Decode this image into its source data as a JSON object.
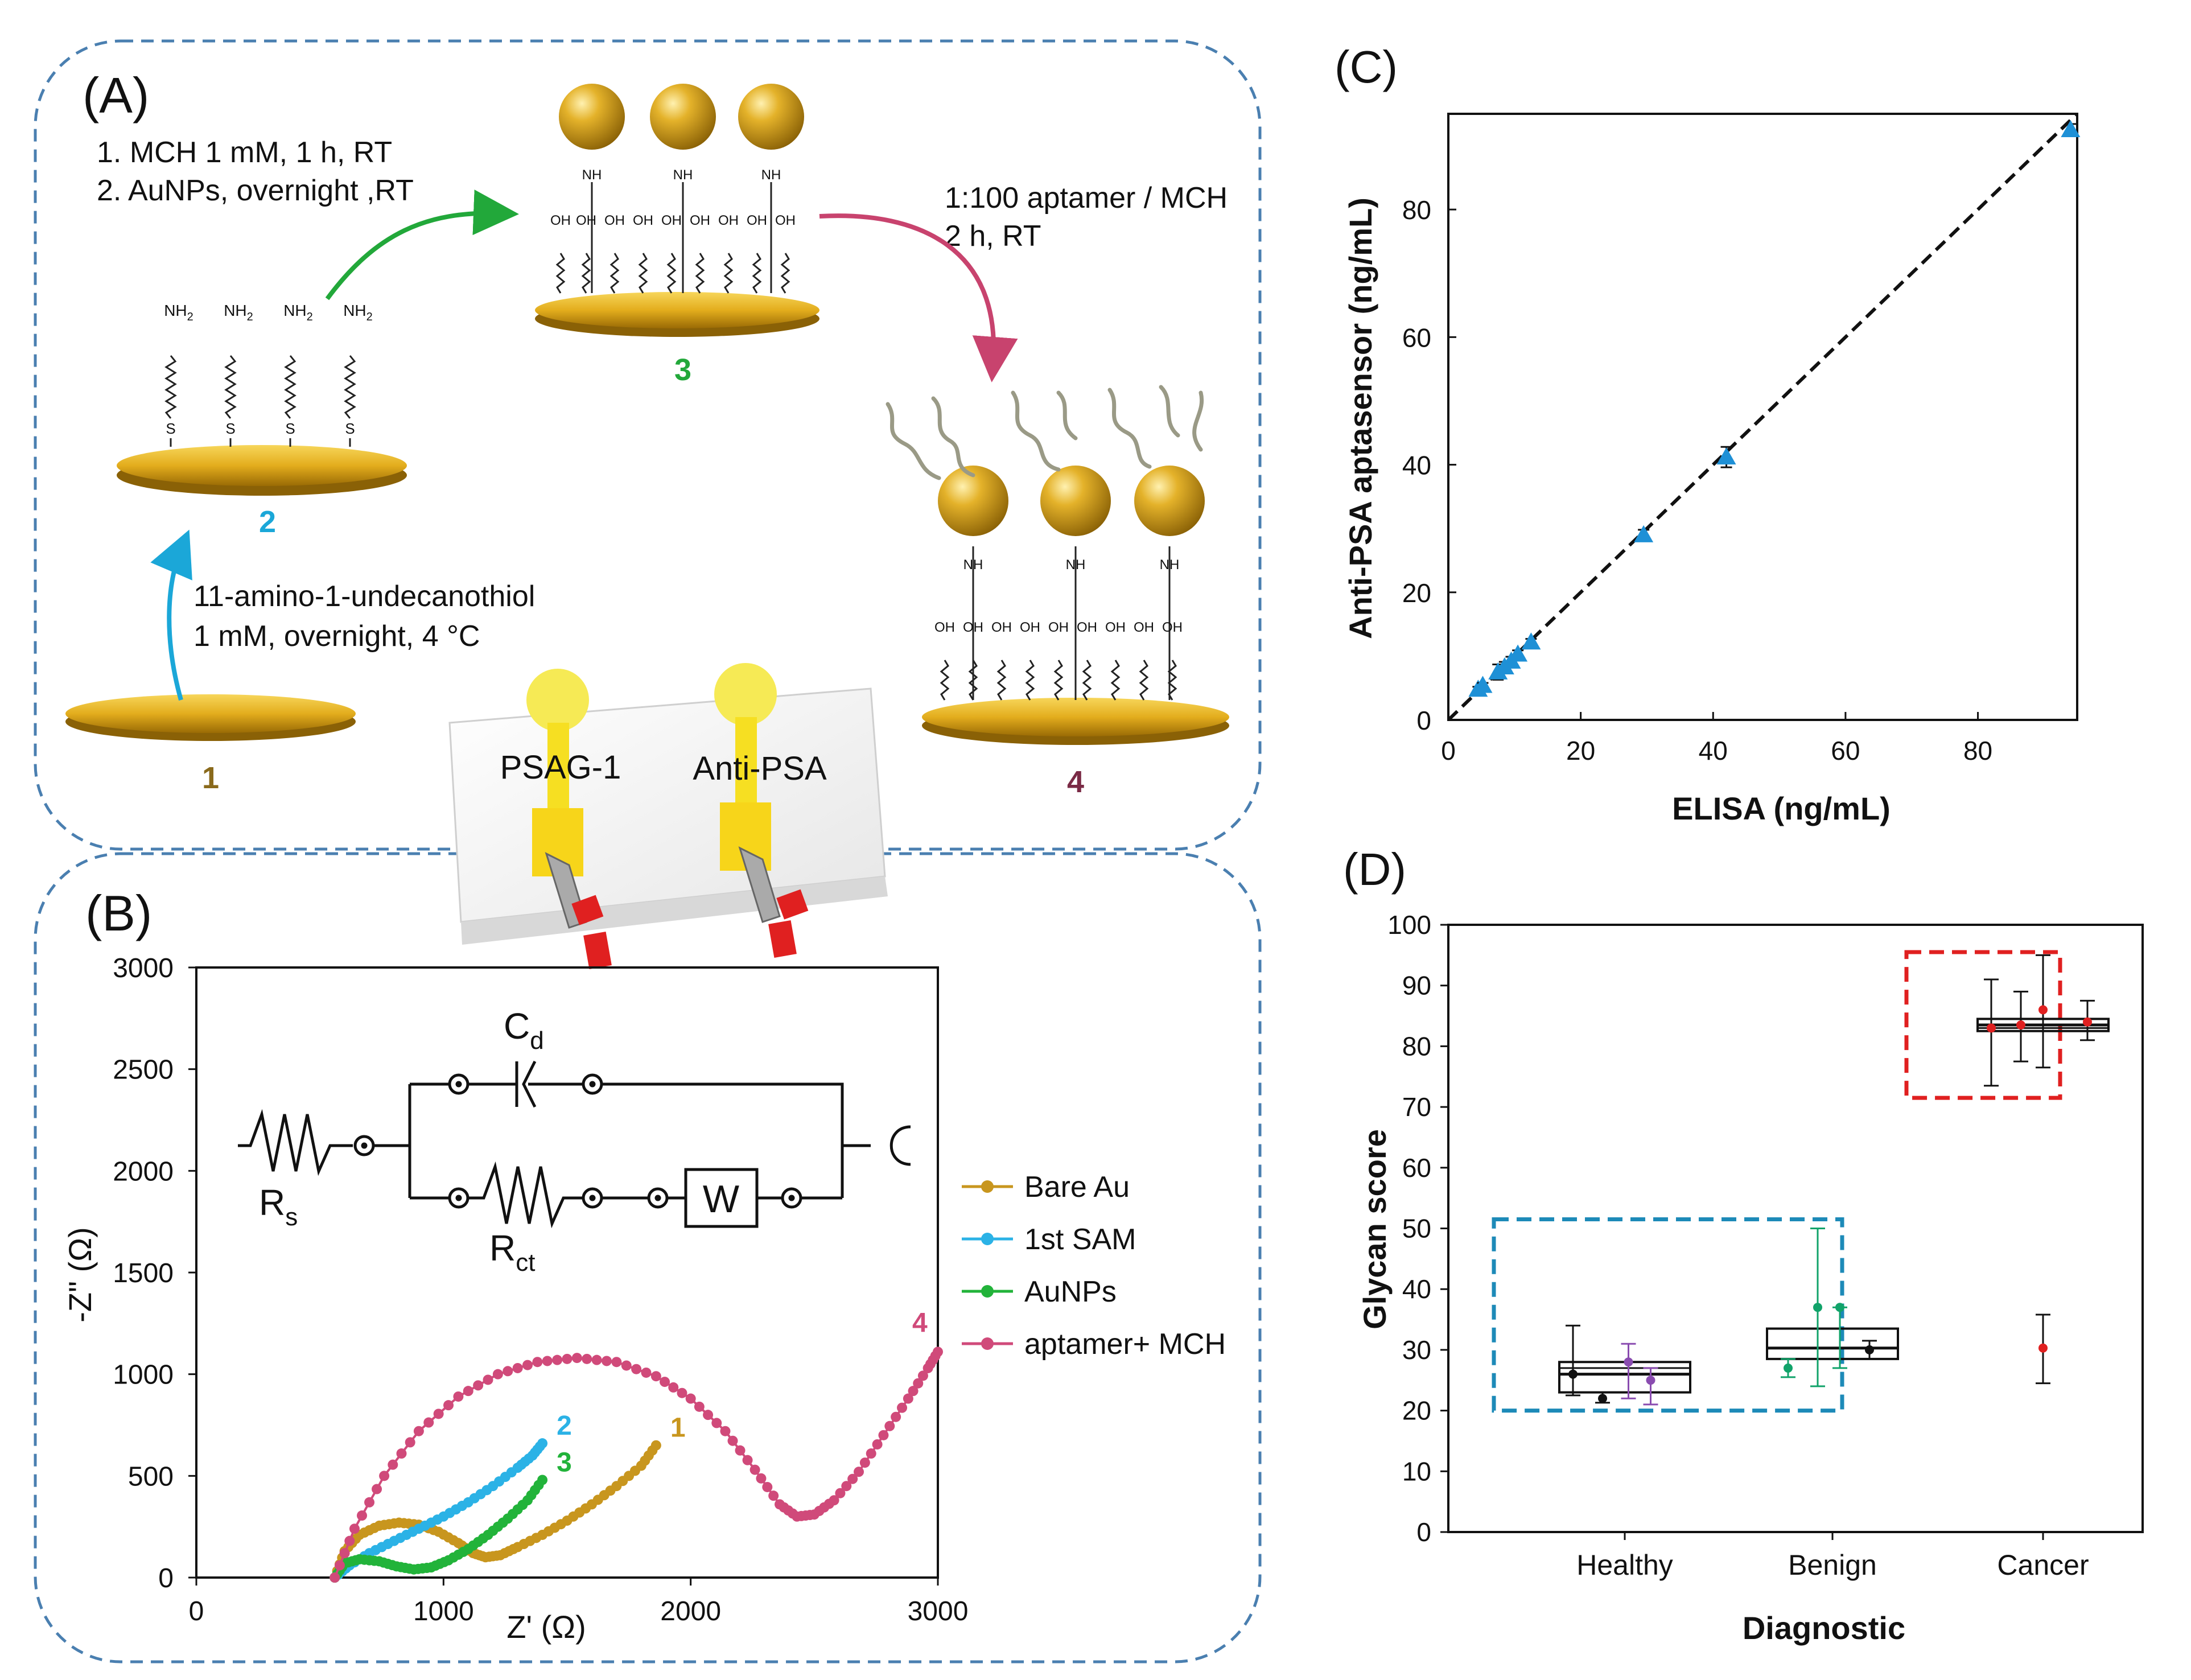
{
  "panel_a": {
    "label": "(A)",
    "step1_line1": "1. MCH 1 mM, 1 h, RT",
    "step1_line2": "2. AuNPs, overnight ,RT",
    "step2_line1": "1:100 aptamer / MCH",
    "step2_line2": "2 h, RT",
    "step0_line1": "11-amino-1-undecanothiol",
    "step0_line2": "1 mM, overnight, 4 °C",
    "num1": "1",
    "num2": "2",
    "num3": "3",
    "num4": "4",
    "nh2": "NH",
    "nh2_sub": "2",
    "nh": "NH",
    "oh": "OH",
    "s": "S",
    "chip_label1": "PSAG-1",
    "chip_label2": "Anti-PSA",
    "colors": {
      "gold": "#d9a21b",
      "arrow_green": "#22a83a",
      "arrow_pink": "#c8436e",
      "arrow_blue": "#1ba7d8",
      "num_brown": "#8a6a1c",
      "num_blue": "#1ba7d8",
      "num_green": "#22a83a",
      "num_maroon": "#7a2a45",
      "frame": "#4a7fb0"
    }
  },
  "panel_b": {
    "label": "(B)",
    "circuit": {
      "cd": "C",
      "cd_sub": "d",
      "rs": "R",
      "rs_sub": "s",
      "rct": "R",
      "rct_sub": "ct",
      "w": "W"
    },
    "xlabel": "Z' (Ω)",
    "ylabel": "-Z\" (Ω)",
    "curve_labels": [
      "1",
      "2",
      "3",
      "4"
    ]
  },
  "panel_c": {
    "label": "(C)"
  },
  "panel_d": {
    "label": "(D)"
  },
  "chart_data": [
    {
      "id": "B",
      "type": "line",
      "title": "",
      "xlabel": "Z' (Ω)",
      "ylabel": "-Z\" (Ω)",
      "xlim": [
        0,
        3000
      ],
      "ylim": [
        0,
        3000
      ],
      "xticks": [
        "0",
        "1000",
        "2000",
        "3000"
      ],
      "yticks": [
        "0",
        "500",
        "1000",
        "1500",
        "2000",
        "2500",
        "3000"
      ],
      "legend": "right",
      "series": [
        {
          "name": "Bare Au",
          "color": "#c8961e",
          "points": [
            [
              560,
              0
            ],
            [
              600,
              130
            ],
            [
              660,
              210
            ],
            [
              740,
              255
            ],
            [
              820,
              270
            ],
            [
              900,
              260
            ],
            [
              980,
              225
            ],
            [
              1060,
              170
            ],
            [
              1120,
              120
            ],
            [
              1170,
              100
            ],
            [
              1230,
              110
            ],
            [
              1300,
              150
            ],
            [
              1400,
              210
            ],
            [
              1500,
              280
            ],
            [
              1600,
              360
            ],
            [
              1700,
              450
            ],
            [
              1800,
              550
            ],
            [
              1860,
              650
            ]
          ]
        },
        {
          "name": "1st  SAM",
          "color": "#2bb2e6",
          "points": [
            [
              560,
              0
            ],
            [
              620,
              60
            ],
            [
              700,
              120
            ],
            [
              800,
              180
            ],
            [
              900,
              240
            ],
            [
              1000,
              300
            ],
            [
              1100,
              370
            ],
            [
              1200,
              450
            ],
            [
              1300,
              540
            ],
            [
              1360,
              600
            ],
            [
              1400,
              660
            ]
          ]
        },
        {
          "name": "AuNPs",
          "color": "#22b33a",
          "points": [
            [
              560,
              0
            ],
            [
              600,
              70
            ],
            [
              660,
              90
            ],
            [
              740,
              80
            ],
            [
              810,
              55
            ],
            [
              880,
              40
            ],
            [
              950,
              50
            ],
            [
              1020,
              85
            ],
            [
              1100,
              140
            ],
            [
              1180,
              210
            ],
            [
              1260,
              290
            ],
            [
              1340,
              380
            ],
            [
              1400,
              480
            ]
          ]
        },
        {
          "name": "aptamer+ MCH",
          "color": "#d04a7a",
          "points": [
            [
              560,
              0
            ],
            [
              640,
              240
            ],
            [
              760,
              500
            ],
            [
              900,
              720
            ],
            [
              1060,
              890
            ],
            [
              1220,
              1000
            ],
            [
              1380,
              1060
            ],
            [
              1540,
              1080
            ],
            [
              1700,
              1060
            ],
            [
              1860,
              990
            ],
            [
              2000,
              880
            ],
            [
              2140,
              720
            ],
            [
              2260,
              530
            ],
            [
              2360,
              360
            ],
            [
              2430,
              300
            ],
            [
              2500,
              310
            ],
            [
              2580,
              380
            ],
            [
              2680,
              520
            ],
            [
              2780,
              700
            ],
            [
              2880,
              880
            ],
            [
              2960,
              1030
            ],
            [
              3000,
              1110
            ]
          ]
        }
      ]
    },
    {
      "id": "C",
      "type": "scatter",
      "title": "",
      "xlabel": "ELISA (ng/mL)",
      "ylabel": "Anti-PSA aptasensor (ng/mL)",
      "xlim": [
        0,
        95
      ],
      "ylim": [
        0,
        95
      ],
      "xticks": [
        "0",
        "20",
        "40",
        "60",
        "80"
      ],
      "yticks": [
        "0",
        "20",
        "40",
        "60",
        "80"
      ],
      "grid": false,
      "points": [
        [
          4.5,
          4.8
        ],
        [
          5.2,
          5.4
        ],
        [
          7.5,
          7.5
        ],
        [
          8.5,
          8.3
        ],
        [
          9.5,
          9.2
        ],
        [
          10.5,
          10.3
        ],
        [
          12.5,
          12.2
        ],
        [
          29.5,
          29
        ],
        [
          42,
          41.2
        ],
        [
          94,
          92.5
        ]
      ],
      "errors": [
        0.4,
        0.4,
        1.2,
        0.8,
        0.7,
        0.6,
        0.5,
        0.8,
        1.6,
        0.9
      ],
      "fit": [
        [
          0,
          0
        ],
        [
          95,
          95
        ]
      ]
    },
    {
      "id": "D",
      "type": "box",
      "title": "",
      "xlabel": "Diagnostic",
      "ylabel": "Glycan score",
      "ylim": [
        0,
        100
      ],
      "yticks": [
        "0",
        "10",
        "20",
        "30",
        "40",
        "50",
        "60",
        "70",
        "80",
        "90",
        "100"
      ],
      "categories": [
        "Healthy",
        "Benign",
        "Cancer"
      ],
      "boxes": [
        {
          "category": "Healthy",
          "q1": 23,
          "median": 26,
          "q3": 28,
          "extra_line": 27
        },
        {
          "category": "Benign",
          "q1": 28.5,
          "median": 30.3,
          "q3": 33.5
        },
        {
          "category": "Cancer",
          "q1": 82.5,
          "median": 83.5,
          "q3": 84.5,
          "extra_line": 83
        }
      ],
      "error_points": [
        {
          "category": "Healthy",
          "offset": -0.7,
          "value": 26,
          "low": 22.5,
          "high": 34,
          "color": "#111111"
        },
        {
          "category": "Healthy",
          "offset": -0.3,
          "value": 22,
          "low": 21.3,
          "high": 23,
          "color": "#111111"
        },
        {
          "category": "Healthy",
          "offset": 0.05,
          "value": 28,
          "low": 22,
          "high": 31,
          "color": "#8a4cb0"
        },
        {
          "category": "Healthy",
          "offset": 0.35,
          "value": 25,
          "low": 21,
          "high": 27,
          "color": "#8a4cb0"
        },
        {
          "category": "Benign",
          "offset": -0.6,
          "value": 27,
          "low": 25.5,
          "high": 28.5,
          "color": "#11a36a"
        },
        {
          "category": "Benign",
          "offset": -0.2,
          "value": 37,
          "low": 24,
          "high": 50,
          "color": "#11a36a"
        },
        {
          "category": "Benign",
          "offset": 0.1,
          "value": 37,
          "low": 27,
          "high": 37,
          "color": "#11a36a"
        },
        {
          "category": "Benign",
          "offset": 0.5,
          "value": 30,
          "low": 28.5,
          "high": 31.5,
          "color": "#111111"
        },
        {
          "category": "Cancer",
          "offset": -0.7,
          "value": 83,
          "low": 73.5,
          "high": 91,
          "color": "#e02020"
        },
        {
          "category": "Cancer",
          "offset": -0.3,
          "value": 83.5,
          "low": 77.5,
          "high": 89,
          "color": "#e02020"
        },
        {
          "category": "Cancer",
          "offset": 0.0,
          "value": 86,
          "low": 76.5,
          "high": 95,
          "color": "#e02020"
        },
        {
          "category": "Cancer",
          "offset": 0.6,
          "value": 84,
          "low": 81,
          "high": 87.5,
          "color": "#e02020"
        },
        {
          "category": "Cancer",
          "offset": 0.0,
          "value": 30.3,
          "low": 24.5,
          "high": 35.8,
          "color": "#e02020"
        }
      ]
    }
  ]
}
